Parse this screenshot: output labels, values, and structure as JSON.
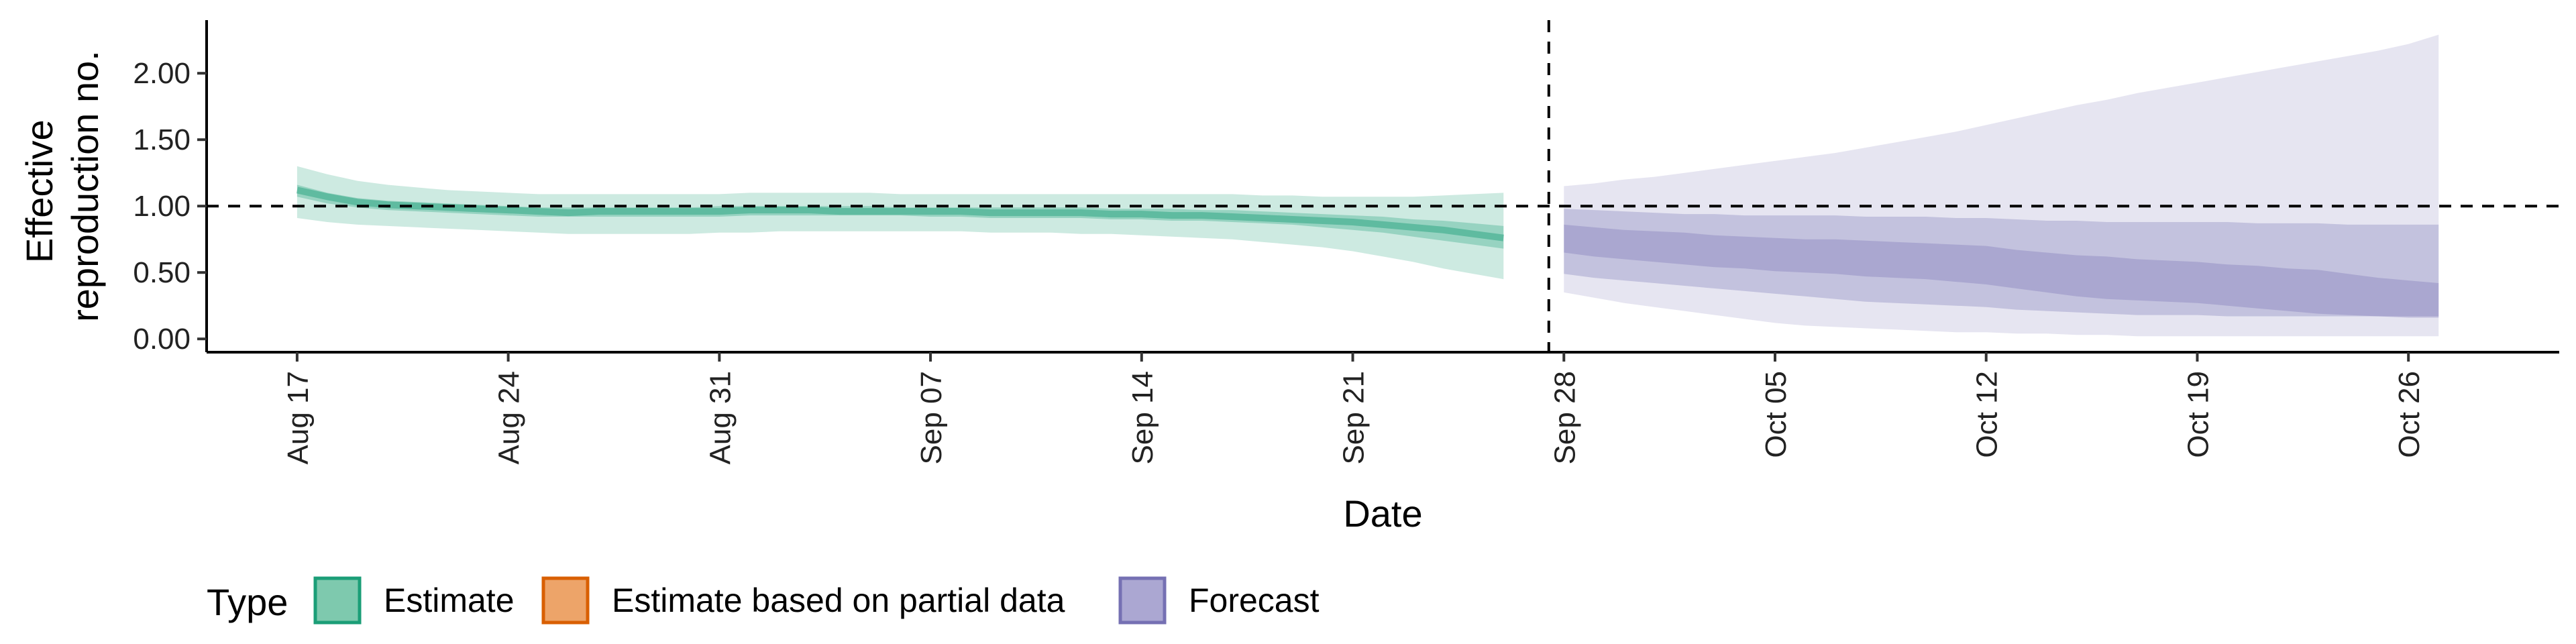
{
  "chart_data": {
    "type": "area",
    "xlabel": "Date",
    "ylabel_lines": [
      "Effective",
      "reproduction no."
    ],
    "x_domain": [
      "2020-08-14",
      "2020-10-31"
    ],
    "ylim": [
      -0.1,
      2.4
    ],
    "y_ticks": [
      {
        "value": 0.0,
        "label": "0.00"
      },
      {
        "value": 0.5,
        "label": "0.50"
      },
      {
        "value": 1.0,
        "label": "1.00"
      },
      {
        "value": 1.5,
        "label": "1.50"
      },
      {
        "value": 2.0,
        "label": "2.00"
      }
    ],
    "x_ticks": [
      {
        "date": "2020-08-17",
        "label": "Aug 17"
      },
      {
        "date": "2020-08-24",
        "label": "Aug 24"
      },
      {
        "date": "2020-08-31",
        "label": "Aug 31"
      },
      {
        "date": "2020-09-07",
        "label": "Sep 07"
      },
      {
        "date": "2020-09-14",
        "label": "Sep 14"
      },
      {
        "date": "2020-09-21",
        "label": "Sep 21"
      },
      {
        "date": "2020-09-28",
        "label": "Sep 28"
      },
      {
        "date": "2020-10-05",
        "label": "Oct 05"
      },
      {
        "date": "2020-10-12",
        "label": "Oct 12"
      },
      {
        "date": "2020-10-19",
        "label": "Oct 19"
      },
      {
        "date": "2020-10-26",
        "label": "Oct 26"
      }
    ],
    "reference_line_y": 1.0,
    "divider_date": "2020-09-27",
    "grid": false,
    "legend": {
      "title": "Type",
      "placement": "bottom",
      "items": [
        {
          "label": "Estimate",
          "fill": "#7ec9ae",
          "stroke": "#1b9e77"
        },
        {
          "label": "Estimate based on partial data",
          "fill": "#eda469",
          "stroke": "#d95f02"
        },
        {
          "label": "Forecast",
          "fill": "#aba7d2",
          "stroke": "#7570b3"
        }
      ]
    },
    "series": [
      {
        "name": "Estimate",
        "color": "#1b9e77",
        "x": [
          "2020-08-17",
          "2020-08-18",
          "2020-08-19",
          "2020-08-20",
          "2020-08-21",
          "2020-08-22",
          "2020-08-23",
          "2020-08-24",
          "2020-08-25",
          "2020-08-26",
          "2020-08-27",
          "2020-08-28",
          "2020-08-29",
          "2020-08-30",
          "2020-08-31",
          "2020-09-01",
          "2020-09-02",
          "2020-09-03",
          "2020-09-04",
          "2020-09-05",
          "2020-09-06",
          "2020-09-07",
          "2020-09-08",
          "2020-09-09",
          "2020-09-10",
          "2020-09-11",
          "2020-09-12",
          "2020-09-13",
          "2020-09-14",
          "2020-09-15",
          "2020-09-16",
          "2020-09-17",
          "2020-09-18",
          "2020-09-19",
          "2020-09-20",
          "2020-09-21",
          "2020-09-22",
          "2020-09-23",
          "2020-09-24",
          "2020-09-25",
          "2020-09-26"
        ],
        "median": [
          1.12,
          1.07,
          1.03,
          1.01,
          1.0,
          0.99,
          0.98,
          0.97,
          0.96,
          0.95,
          0.96,
          0.96,
          0.96,
          0.96,
          0.96,
          0.97,
          0.97,
          0.97,
          0.96,
          0.96,
          0.96,
          0.96,
          0.96,
          0.95,
          0.95,
          0.95,
          0.95,
          0.94,
          0.94,
          0.93,
          0.93,
          0.92,
          0.91,
          0.9,
          0.89,
          0.88,
          0.86,
          0.84,
          0.82,
          0.79,
          0.76
        ],
        "upper50": [
          1.16,
          1.1,
          1.06,
          1.04,
          1.03,
          1.02,
          1.01,
          1.0,
          0.99,
          0.99,
          0.99,
          0.99,
          0.99,
          0.99,
          1.0,
          1.0,
          1.0,
          1.0,
          1.0,
          1.0,
          0.99,
          0.99,
          0.99,
          0.99,
          0.99,
          0.99,
          0.99,
          0.98,
          0.98,
          0.98,
          0.97,
          0.97,
          0.96,
          0.95,
          0.94,
          0.93,
          0.92,
          0.9,
          0.89,
          0.87,
          0.85
        ],
        "lower50": [
          1.07,
          1.02,
          0.99,
          0.97,
          0.96,
          0.95,
          0.94,
          0.93,
          0.92,
          0.92,
          0.92,
          0.92,
          0.92,
          0.92,
          0.92,
          0.93,
          0.93,
          0.93,
          0.93,
          0.93,
          0.93,
          0.92,
          0.92,
          0.91,
          0.91,
          0.91,
          0.91,
          0.9,
          0.9,
          0.89,
          0.89,
          0.88,
          0.87,
          0.86,
          0.84,
          0.82,
          0.8,
          0.77,
          0.74,
          0.71,
          0.68
        ],
        "upper90": [
          1.3,
          1.24,
          1.19,
          1.16,
          1.14,
          1.12,
          1.11,
          1.1,
          1.09,
          1.09,
          1.09,
          1.09,
          1.09,
          1.09,
          1.09,
          1.1,
          1.1,
          1.1,
          1.1,
          1.1,
          1.09,
          1.09,
          1.09,
          1.09,
          1.09,
          1.09,
          1.09,
          1.09,
          1.09,
          1.09,
          1.09,
          1.09,
          1.08,
          1.08,
          1.07,
          1.07,
          1.07,
          1.07,
          1.08,
          1.09,
          1.1
        ],
        "lower90": [
          0.91,
          0.88,
          0.86,
          0.85,
          0.84,
          0.83,
          0.82,
          0.81,
          0.8,
          0.79,
          0.79,
          0.79,
          0.79,
          0.79,
          0.8,
          0.8,
          0.81,
          0.81,
          0.81,
          0.81,
          0.81,
          0.81,
          0.81,
          0.8,
          0.8,
          0.8,
          0.79,
          0.79,
          0.78,
          0.77,
          0.76,
          0.75,
          0.73,
          0.71,
          0.69,
          0.66,
          0.62,
          0.58,
          0.53,
          0.49,
          0.45
        ]
      },
      {
        "name": "Forecast",
        "color": "#7570b3",
        "x": [
          "2020-09-28",
          "2020-09-29",
          "2020-09-30",
          "2020-10-01",
          "2020-10-02",
          "2020-10-03",
          "2020-10-04",
          "2020-10-05",
          "2020-10-06",
          "2020-10-07",
          "2020-10-08",
          "2020-10-09",
          "2020-10-10",
          "2020-10-11",
          "2020-10-12",
          "2020-10-13",
          "2020-10-14",
          "2020-10-15",
          "2020-10-16",
          "2020-10-17",
          "2020-10-18",
          "2020-10-19",
          "2020-10-20",
          "2020-10-21",
          "2020-10-22",
          "2020-10-23",
          "2020-10-24",
          "2020-10-25",
          "2020-10-26",
          "2020-10-27"
        ],
        "median": [
          0.75,
          0.72,
          0.71,
          0.7,
          0.69,
          0.67,
          0.66,
          0.64,
          0.63,
          0.62,
          0.6,
          0.59,
          0.58,
          0.56,
          0.55,
          0.52,
          0.5,
          0.47,
          0.45,
          0.44,
          0.43,
          0.42,
          0.4,
          0.38,
          0.36,
          0.35,
          0.33,
          0.31,
          0.29,
          0.28
        ],
        "upper50": [
          0.86,
          0.84,
          0.82,
          0.81,
          0.8,
          0.78,
          0.77,
          0.76,
          0.75,
          0.75,
          0.74,
          0.73,
          0.72,
          0.71,
          0.7,
          0.67,
          0.65,
          0.63,
          0.62,
          0.6,
          0.59,
          0.58,
          0.56,
          0.55,
          0.53,
          0.52,
          0.49,
          0.46,
          0.44,
          0.42
        ],
        "lower50": [
          0.65,
          0.62,
          0.6,
          0.58,
          0.56,
          0.54,
          0.53,
          0.51,
          0.5,
          0.49,
          0.47,
          0.46,
          0.45,
          0.43,
          0.41,
          0.38,
          0.35,
          0.32,
          0.3,
          0.29,
          0.28,
          0.27,
          0.25,
          0.23,
          0.21,
          0.19,
          0.18,
          0.17,
          0.16,
          0.16
        ],
        "upper80": [
          0.98,
          0.97,
          0.96,
          0.95,
          0.94,
          0.94,
          0.93,
          0.93,
          0.93,
          0.93,
          0.92,
          0.92,
          0.92,
          0.91,
          0.91,
          0.9,
          0.89,
          0.89,
          0.88,
          0.88,
          0.88,
          0.88,
          0.88,
          0.87,
          0.87,
          0.87,
          0.86,
          0.86,
          0.86,
          0.86
        ],
        "lower80": [
          0.49,
          0.46,
          0.44,
          0.42,
          0.4,
          0.38,
          0.36,
          0.34,
          0.32,
          0.3,
          0.28,
          0.27,
          0.26,
          0.25,
          0.24,
          0.22,
          0.21,
          0.2,
          0.19,
          0.18,
          0.18,
          0.18,
          0.17,
          0.17,
          0.17,
          0.17,
          0.17,
          0.17,
          0.17,
          0.17
        ],
        "upper90": [
          1.15,
          1.17,
          1.2,
          1.22,
          1.25,
          1.28,
          1.31,
          1.34,
          1.37,
          1.4,
          1.44,
          1.48,
          1.52,
          1.56,
          1.61,
          1.66,
          1.71,
          1.76,
          1.8,
          1.85,
          1.89,
          1.93,
          1.97,
          2.01,
          2.05,
          2.09,
          2.13,
          2.17,
          2.22,
          2.29
        ],
        "lower90": [
          0.35,
          0.31,
          0.27,
          0.24,
          0.21,
          0.18,
          0.15,
          0.12,
          0.1,
          0.09,
          0.08,
          0.07,
          0.06,
          0.05,
          0.05,
          0.04,
          0.04,
          0.03,
          0.03,
          0.02,
          0.02,
          0.02,
          0.02,
          0.02,
          0.02,
          0.02,
          0.02,
          0.02,
          0.02,
          0.02
        ]
      }
    ]
  }
}
